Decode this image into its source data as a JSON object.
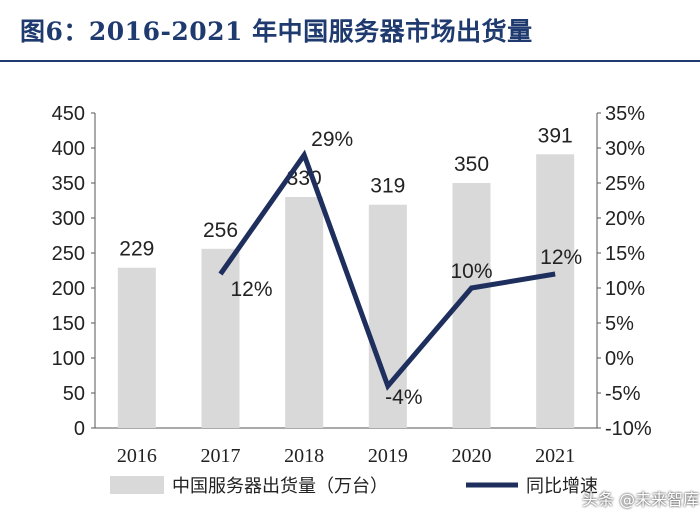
{
  "title": "图6：2016-2021 年中国服务器市场出货量",
  "watermark": "头条 @未来智库",
  "chart_data": {
    "type": "bar",
    "categories": [
      "2016",
      "2017",
      "2018",
      "2019",
      "2020",
      "2021"
    ],
    "series": [
      {
        "name": "中国服务器出货量（万台）",
        "type": "bar",
        "axis": "left",
        "values": [
          229,
          256,
          330,
          319,
          350,
          391
        ],
        "labels": [
          "229",
          "256",
          "330",
          "319",
          "350",
          "391"
        ],
        "color": "#d9d9d9"
      },
      {
        "name": "同比增速",
        "type": "line",
        "axis": "right",
        "values": [
          null,
          12,
          29,
          -4,
          10,
          12
        ],
        "labels": [
          "",
          "12%",
          "29%",
          "-4%",
          "10%",
          "12%"
        ],
        "color": "#1e2f5e"
      }
    ],
    "y_left": {
      "min": 0,
      "max": 450,
      "ticks": [
        "0",
        "50",
        "100",
        "150",
        "200",
        "250",
        "300",
        "350",
        "400",
        "450"
      ]
    },
    "y_right": {
      "min": -10,
      "max": 35,
      "ticks": [
        "-10%",
        "-5%",
        "0%",
        "5%",
        "10%",
        "15%",
        "20%",
        "25%",
        "30%",
        "35%"
      ]
    },
    "legend_position": "bottom",
    "grid": false
  }
}
